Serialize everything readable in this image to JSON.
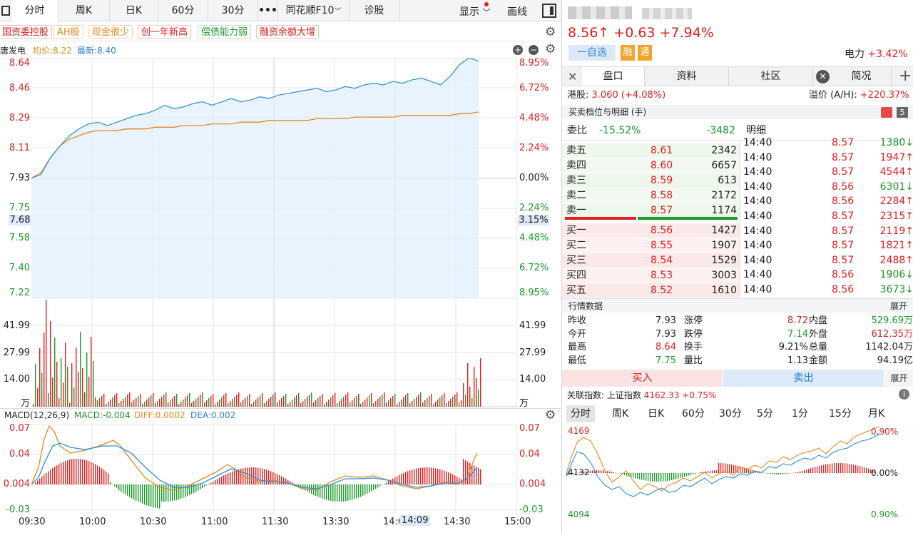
{
  "toolbar": {
    "tabs": [
      "分时",
      "周K",
      "日K",
      "60分",
      "30分",
      "•••",
      "同花顺F10",
      "诊股"
    ],
    "display": "显示",
    "draw": "画线"
  },
  "tags": [
    "国资委控股",
    "AH股",
    "现金很少",
    "创一年新高",
    "偿债能力弱",
    "融资余额大增"
  ],
  "info": {
    "name": "唐发电",
    "avg": "均价:8.22",
    "latest": "最新:8.40"
  },
  "price_axis": {
    "left": [
      "8.64",
      "8.46",
      "8.29",
      "8.11",
      "7.93",
      "7.75",
      "7.58",
      "7.40",
      "7.22"
    ],
    "right": [
      "8.95%",
      "6.72%",
      "4.48%",
      "2.24%",
      "0.00%",
      "2.24%",
      "4.48%",
      "6.72%",
      "8.95%"
    ],
    "cursor_left": "7.68",
    "cursor_right": "3.15%"
  },
  "vol_axis": {
    "left": [
      "41.99",
      "27.99",
      "14.00",
      "万"
    ],
    "right": [
      "41.99",
      "27.99",
      "14.00",
      "万"
    ]
  },
  "macd": {
    "title": "MACD(12,26,9)",
    "macd": "MACD:-0.004",
    "diff": "DIFF:0.0002",
    "dea": "DEA:0.002",
    "left": [
      "0.07",
      "0.04",
      "0.004",
      "-0.03"
    ],
    "right": [
      "0.07",
      "0.04",
      "0.004",
      "-0.03"
    ]
  },
  "time_axis": [
    "09:30",
    "10:00",
    "10:30",
    "11:00",
    "11:30",
    "13:30",
    "14:0",
    "14:09",
    "14:30",
    "15:00"
  ],
  "chart_data": {
    "type": "line",
    "title": "",
    "prev_close": 7.93,
    "ylim": [
      7.22,
      8.64
    ],
    "series": [
      {
        "name": "最新",
        "values": [
          7.93,
          7.95,
          8.05,
          8.12,
          8.18,
          8.22,
          8.25,
          8.26,
          8.24,
          8.26,
          8.28,
          8.3,
          8.31,
          8.33,
          8.36,
          8.34,
          8.35,
          8.37,
          8.38,
          8.36,
          8.38,
          8.4,
          8.38,
          8.39,
          8.41,
          8.4,
          8.42,
          8.43,
          8.44,
          8.45,
          8.46,
          8.44,
          8.45,
          8.47,
          8.46,
          8.48,
          8.49,
          8.48,
          8.5,
          8.49,
          8.51,
          8.52,
          8.5,
          8.48,
          8.53,
          8.6,
          8.64,
          8.62
        ]
      },
      {
        "name": "均价",
        "values": [
          7.93,
          7.96,
          8.05,
          8.12,
          8.16,
          8.18,
          8.2,
          8.21,
          8.21,
          8.21,
          8.22,
          8.22,
          8.22,
          8.23,
          8.23,
          8.23,
          8.24,
          8.24,
          8.24,
          8.25,
          8.25,
          8.25,
          8.26,
          8.26,
          8.26,
          8.27,
          8.27,
          8.27,
          8.27,
          8.27,
          8.28,
          8.28,
          8.28,
          8.28,
          8.29,
          8.29,
          8.29,
          8.29,
          8.29,
          8.3,
          8.3,
          8.3,
          8.3,
          8.3,
          8.3,
          8.31,
          8.31,
          8.32
        ]
      }
    ]
  },
  "right": {
    "price": "8.56↑",
    "change": "+0.63",
    "pct": "+7.94%",
    "fav": "一自选",
    "rong": "融",
    "tong": "通",
    "sector": "电力",
    "sector_pct": "+3.42%",
    "tabs": [
      "盘口",
      "资料",
      "社区",
      "简况"
    ],
    "hk_label": "港股:",
    "hk_val": "3.060 (+4.08%)",
    "premium_label": "溢价 (A/H):",
    "premium_val": "+220.37%",
    "book_title": "买卖档位与明细 (手)",
    "wb_label": "委比",
    "wb_pct": "-15.52%",
    "wb_diff": "-3482",
    "detail_label": "明细",
    "asks": [
      [
        "卖五",
        "8.61",
        "2342"
      ],
      [
        "卖四",
        "8.60",
        "6657"
      ],
      [
        "卖三",
        "8.59",
        "613"
      ],
      [
        "卖二",
        "8.58",
        "2172"
      ],
      [
        "卖一",
        "8.57",
        "1174"
      ]
    ],
    "bids": [
      [
        "买一",
        "8.56",
        "1427"
      ],
      [
        "买二",
        "8.55",
        "1907"
      ],
      [
        "买三",
        "8.54",
        "1529"
      ],
      [
        "买四",
        "8.53",
        "3003"
      ],
      [
        "买五",
        "8.52",
        "1610"
      ]
    ],
    "trades": [
      [
        "14:40",
        "8.57",
        "1380↓"
      ],
      [
        "14:40",
        "8.57",
        "1947↑"
      ],
      [
        "14:40",
        "8.57",
        "4544↑"
      ],
      [
        "14:40",
        "8.56",
        "6301↓"
      ],
      [
        "14:40",
        "8.56",
        "2284↑"
      ],
      [
        "14:40",
        "8.57",
        "2315↑"
      ],
      [
        "14:40",
        "8.57",
        "2119↑"
      ],
      [
        "14:40",
        "8.57",
        "1821↑"
      ],
      [
        "14:40",
        "8.57",
        "2488↑"
      ],
      [
        "14:40",
        "8.56",
        "1906↓"
      ],
      [
        "14:40",
        "8.56",
        "3673↓"
      ]
    ],
    "quote_title": "行情数据",
    "expand": "展开",
    "quotes": [
      [
        "昨收",
        "7.93",
        "涨停",
        "8.72",
        "内盘",
        "529.69万"
      ],
      [
        "今开",
        "7.93",
        "跌停",
        "7.14",
        "外盘",
        "612.35万"
      ],
      [
        "最高",
        "8.64",
        "换手",
        "9.21%",
        "总量",
        "1142.04万"
      ],
      [
        "最低",
        "7.75",
        "量比",
        "1.13",
        "金额",
        "94.19亿"
      ]
    ],
    "buy": "买入",
    "sell": "卖出",
    "idx_label": "关联指数:",
    "idx_name": "上证指数",
    "idx_val": "4162.33 +0.75%",
    "idx_tabs": [
      "分时",
      "周K",
      "日K",
      "60分",
      "30分",
      "5分",
      "1分",
      "15分",
      "月K"
    ],
    "idx_axis": [
      "4169",
      "4132",
      "4094"
    ],
    "idx_pct": [
      "0.90%",
      "0.00%",
      "0.90%"
    ]
  }
}
